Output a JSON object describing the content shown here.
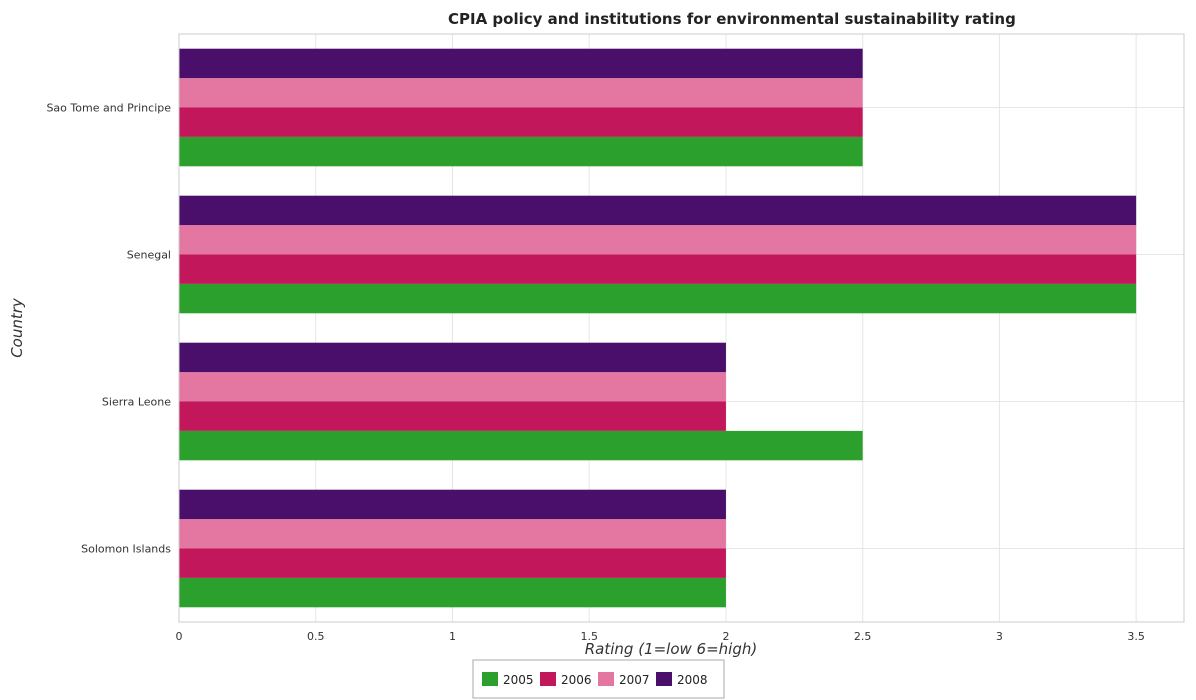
{
  "chart_data": {
    "type": "bar",
    "orientation": "horizontal",
    "title": "CPIA policy and institutions for environmental sustainability rating",
    "xlabel": "Rating (1=low 6=high)",
    "ylabel": "Country",
    "categories": [
      "Sao Tome and Principe",
      "Senegal",
      "Sierra Leone",
      "Solomon Islands"
    ],
    "series": [
      {
        "name": "2005",
        "color": "#2ca02c",
        "values": [
          2.5,
          3.5,
          2.5,
          2.0
        ]
      },
      {
        "name": "2006",
        "color": "#c2185b",
        "values": [
          2.5,
          3.5,
          2.0,
          2.0
        ]
      },
      {
        "name": "2007",
        "color": "#e377a2",
        "values": [
          2.5,
          3.5,
          2.0,
          2.0
        ]
      },
      {
        "name": "2008",
        "color": "#4a0e6b",
        "values": [
          2.5,
          3.5,
          2.0,
          2.0
        ]
      }
    ],
    "xlim": [
      0,
      3.675
    ],
    "xticks": [
      0,
      0.5,
      1,
      1.5,
      2,
      2.5,
      3,
      3.5
    ],
    "xtick_labels": [
      "0",
      "0.5",
      "1",
      "1.5",
      "2",
      "2.5",
      "3",
      "3.5"
    ],
    "grid": true,
    "legend_position": "bottom-center"
  }
}
